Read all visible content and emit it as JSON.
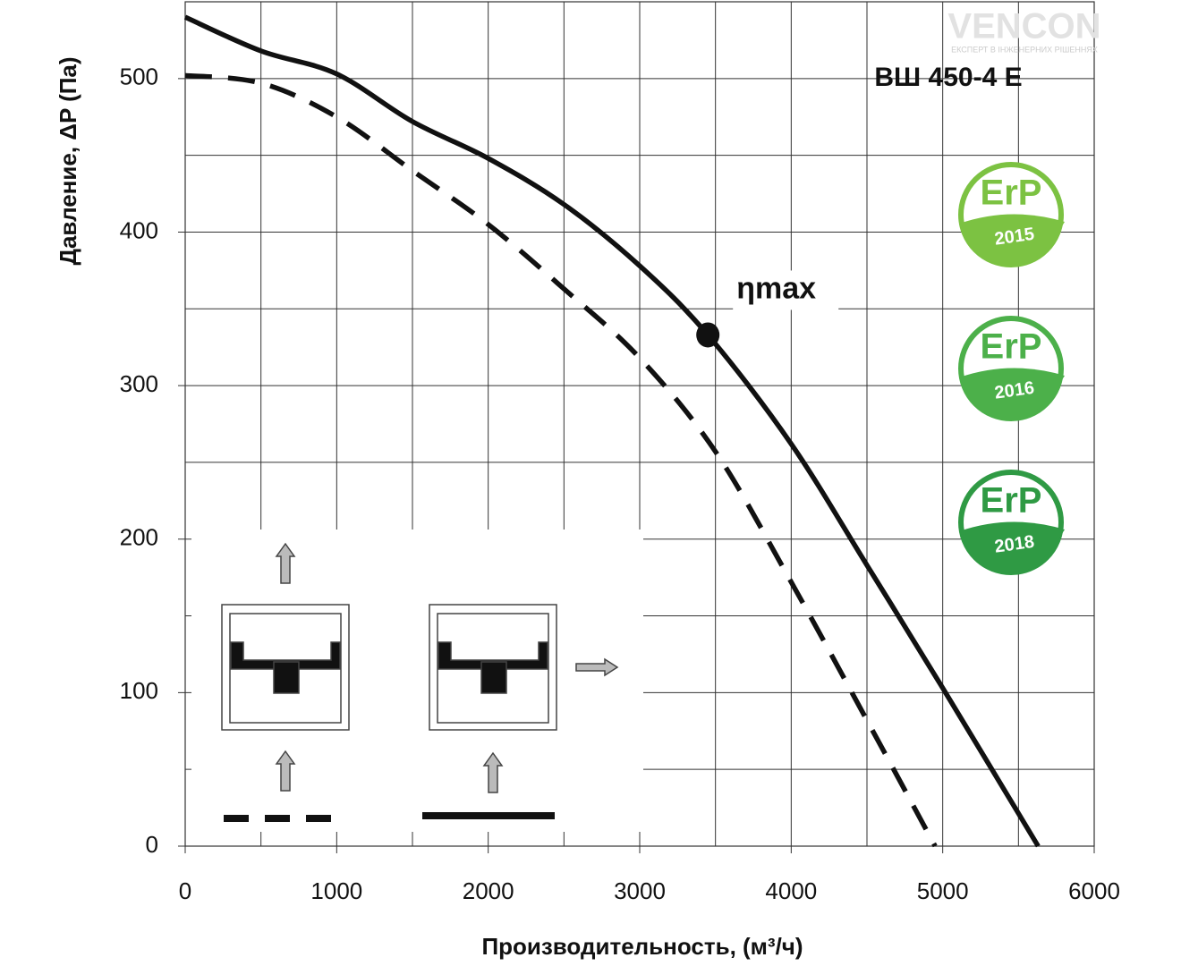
{
  "chart_data": {
    "type": "line",
    "title": "ВШ 450-4 E",
    "x_label": "Производительность, (м³/ч)",
    "y_label": "Давление, ΔP (Па)",
    "xlim": [
      0,
      6000
    ],
    "ylim": [
      0,
      550
    ],
    "xticks": [
      0,
      1000,
      2000,
      3000,
      4000,
      5000,
      6000
    ],
    "yticks": [
      0,
      100,
      200,
      300,
      400,
      500
    ],
    "x_minor_ticks": [
      500,
      1500,
      2500,
      3500,
      4500,
      5500
    ],
    "y_minor_ticks": [
      50,
      150,
      250,
      350,
      450
    ],
    "grid": true,
    "series": [
      {
        "color": "#111111",
        "line_style": "solid",
        "x": [
          0,
          500,
          1000,
          1500,
          2000,
          2500,
          3000,
          3450,
          4000,
          4500,
          5000,
          5630
        ],
        "values": [
          540,
          518,
          503,
          472,
          448,
          418,
          378,
          333,
          262,
          183,
          103,
          0
        ]
      },
      {
        "color": "#111111",
        "line_style": "dashed",
        "x": [
          0,
          500,
          1000,
          1500,
          2000,
          2500,
          3000,
          3500,
          4000,
          4500,
          4950
        ],
        "values": [
          502,
          497,
          475,
          440,
          405,
          363,
          318,
          257,
          172,
          82,
          0
        ]
      }
    ],
    "annotations": [
      {
        "text": "ηmax",
        "x": 3450,
        "y": 333
      }
    ],
    "logo": {
      "name": "VENCON",
      "tagline": "ЕКСПЕРТ В ІНЖЕНЕРНИХ РІШЕННЯХ"
    },
    "badges": [
      {
        "label": "ErP",
        "year": "2015",
        "color": "#7cc242"
      },
      {
        "label": "ErP",
        "year": "2016",
        "color": "#4cb04a"
      },
      {
        "label": "ErP",
        "year": "2018",
        "color": "#2f9a44"
      }
    ]
  }
}
